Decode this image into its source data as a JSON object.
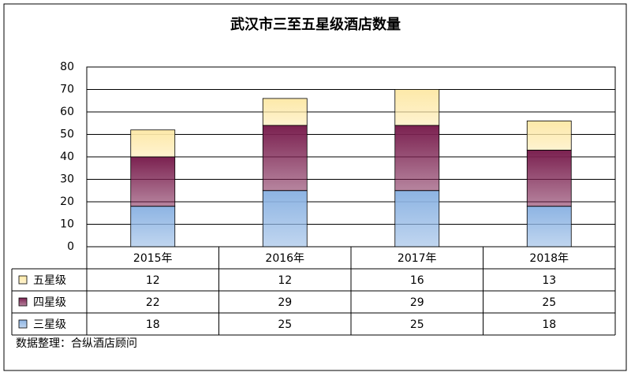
{
  "chart_data": {
    "type": "bar",
    "stacked": true,
    "title": "武汉市三至五星级酒店数量",
    "categories": [
      "2015年",
      "2016年",
      "2017年",
      "2018年"
    ],
    "series": [
      {
        "name": "三星级",
        "color": "#8db4e3",
        "values": [
          18,
          25,
          25,
          18
        ]
      },
      {
        "name": "四星级",
        "color": "#7b2150",
        "values": [
          22,
          29,
          29,
          25
        ]
      },
      {
        "name": "五星级",
        "color": "#fde9a9",
        "values": [
          12,
          12,
          16,
          13
        ]
      }
    ],
    "ylim": [
      0,
      80
    ],
    "yticks": [
      0,
      10,
      20,
      30,
      40,
      50,
      60,
      70,
      80
    ],
    "grid": true,
    "source": "数据整理：合纵酒店顾问"
  }
}
